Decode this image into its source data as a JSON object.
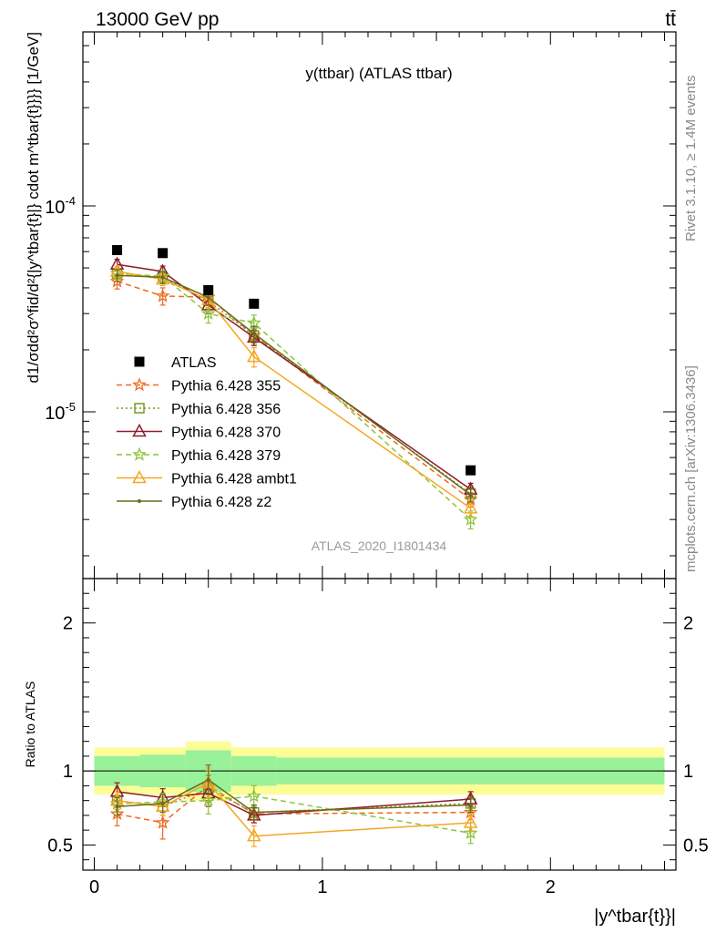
{
  "header": {
    "left": "13000 GeV pp",
    "right": "tt̄"
  },
  "side_texts": {
    "rivet": "Rivet 3.1.10, ≥ 1.4M events",
    "mcplots": "mcplots.cern.ch [arXiv:1306.3436]"
  },
  "plot_title": "y(ttbar) (ATLAS ttbar)",
  "analysis_label": "ATLAS_2020_I1801434",
  "legend": {
    "entries": [
      "ATLAS",
      "Pythia 6.428 355",
      "Pythia 6.428 356",
      "Pythia 6.428 370",
      "Pythia 6.428 379",
      "Pythia 6.428 ambt1",
      "Pythia 6.428 z2"
    ]
  },
  "chart_data": [
    {
      "type": "scatter",
      "panel": "main",
      "ylabel": "d1/σdd²σ^fid/d²{|y^tbar{t}|} cdot m^tbar{t}}}} [1/GeV]",
      "yscale": "log",
      "ylim": [
        1.55e-06,
        0.0007
      ],
      "y_tick_labels": [
        "10^{-5}",
        "10^{-4}"
      ],
      "xlim": [
        -0.05,
        2.55
      ],
      "x": [
        0.1,
        0.3,
        0.5,
        0.7,
        1.65
      ],
      "series": [
        {
          "name": "ATLAS",
          "color": "#000000",
          "marker": "square",
          "values": [
            6.1e-05,
            5.9e-05,
            3.9e-05,
            3.35e-05,
            5.2e-06
          ]
        },
        {
          "name": "Pythia 6.428 355",
          "color": "#ee6a1e",
          "marker": "star",
          "dash": "dashed",
          "values": [
            4.3e-05,
            3.65e-05,
            3.6e-05,
            2.35e-05,
            3.75e-06
          ],
          "errors": [
            3.5e-06,
            3.5e-06,
            4e-06,
            2.5e-06,
            3e-07
          ]
        },
        {
          "name": "Pythia 6.428 356",
          "color": "#7a9a1e",
          "marker": "open-square",
          "dash": "dotted",
          "values": [
            4.7e-05,
            4.5e-05,
            3.45e-05,
            2.35e-05,
            4e-06
          ],
          "errors": [
            3e-06,
            3e-06,
            3e-06,
            2e-06,
            3e-07
          ]
        },
        {
          "name": "Pythia 6.428 370",
          "color": "#8e1c2e",
          "marker": "open-triangle",
          "dash": "solid",
          "values": [
            5.2e-05,
            4.8e-05,
            3.3e-05,
            2.3e-05,
            4.2e-06
          ],
          "errors": [
            3e-06,
            3e-06,
            3e-06,
            2e-06,
            3e-07
          ]
        },
        {
          "name": "Pythia 6.428 379",
          "color": "#8cc43c",
          "marker": "star",
          "dash": "dashed",
          "values": [
            4.7e-05,
            4.55e-05,
            3e-05,
            2.7e-05,
            3e-06
          ],
          "errors": [
            3e-06,
            3e-06,
            3e-06,
            2.5e-06,
            3e-07
          ]
        },
        {
          "name": "Pythia 6.428 ambt1",
          "color": "#f5a623",
          "marker": "open-triangle",
          "dash": "solid",
          "values": [
            4.8e-05,
            4.4e-05,
            3.5e-05,
            1.85e-05,
            3.4e-06
          ],
          "errors": [
            3e-06,
            3e-06,
            3e-06,
            2e-06,
            3e-07
          ]
        },
        {
          "name": "Pythia 6.428 z2",
          "color": "#6b6b1a",
          "marker": "dot",
          "dash": "solid",
          "values": [
            4.6e-05,
            4.5e-05,
            3.6e-05,
            2.4e-05,
            3.95e-06
          ],
          "errors": [
            3e-06,
            3e-06,
            3e-06,
            2e-06,
            3e-07
          ]
        }
      ]
    },
    {
      "type": "scatter",
      "panel": "ratio",
      "ylabel": "Ratio to ATLAS",
      "xlabel": "|y^tbar{t}}|",
      "ylim": [
        0.33,
        2.3
      ],
      "y_ticks": [
        0.5,
        1,
        2
      ],
      "y_tick_labels": [
        "0.5",
        "1",
        "2"
      ],
      "xlim": [
        -0.05,
        2.55
      ],
      "x_ticks": [
        0,
        1,
        2
      ],
      "x_tick_labels": [
        "0",
        "1",
        "2"
      ],
      "bands": {
        "bins": [
          [
            0.0,
            0.2
          ],
          [
            0.2,
            0.4
          ],
          [
            0.4,
            0.6
          ],
          [
            0.6,
            0.8
          ],
          [
            0.8,
            2.5
          ]
        ],
        "inner": [
          [
            0.9,
            1.1
          ],
          [
            0.89,
            1.11
          ],
          [
            0.86,
            1.14
          ],
          [
            0.9,
            1.1
          ],
          [
            0.91,
            1.09
          ]
        ],
        "outer": [
          [
            0.84,
            1.16
          ],
          [
            0.84,
            1.16
          ],
          [
            0.8,
            1.2
          ],
          [
            0.84,
            1.16
          ],
          [
            0.84,
            1.16
          ]
        ],
        "inner_color": "#99f199",
        "outer_color": "#fdfd98"
      },
      "x": [
        0.1,
        0.3,
        0.5,
        0.7,
        1.65
      ],
      "series": [
        {
          "name": "Pythia 6.428 355",
          "values": [
            0.71,
            0.65,
            0.9,
            0.71,
            0.72
          ],
          "errors": [
            0.08,
            0.11,
            0.1,
            0.06,
            0.05
          ]
        },
        {
          "name": "Pythia 6.428 356",
          "values": [
            0.8,
            0.76,
            0.88,
            0.72,
            0.78
          ],
          "errors": [
            0.06,
            0.06,
            0.09,
            0.05,
            0.05
          ]
        },
        {
          "name": "Pythia 6.428 370",
          "values": [
            0.86,
            0.82,
            0.85,
            0.7,
            0.81
          ],
          "errors": [
            0.06,
            0.06,
            0.09,
            0.05,
            0.05
          ]
        },
        {
          "name": "Pythia 6.428 379",
          "values": [
            0.78,
            0.79,
            0.8,
            0.83,
            0.58
          ],
          "errors": [
            0.06,
            0.06,
            0.09,
            0.07,
            0.07
          ]
        },
        {
          "name": "Pythia 6.428 ambt1",
          "values": [
            0.8,
            0.76,
            0.92,
            0.56,
            0.65
          ],
          "errors": [
            0.06,
            0.06,
            0.1,
            0.07,
            0.06
          ]
        },
        {
          "name": "Pythia 6.428 z2",
          "values": [
            0.76,
            0.78,
            0.94,
            0.72,
            0.77
          ],
          "errors": [
            0.06,
            0.06,
            0.1,
            0.05,
            0.05
          ]
        }
      ]
    }
  ]
}
